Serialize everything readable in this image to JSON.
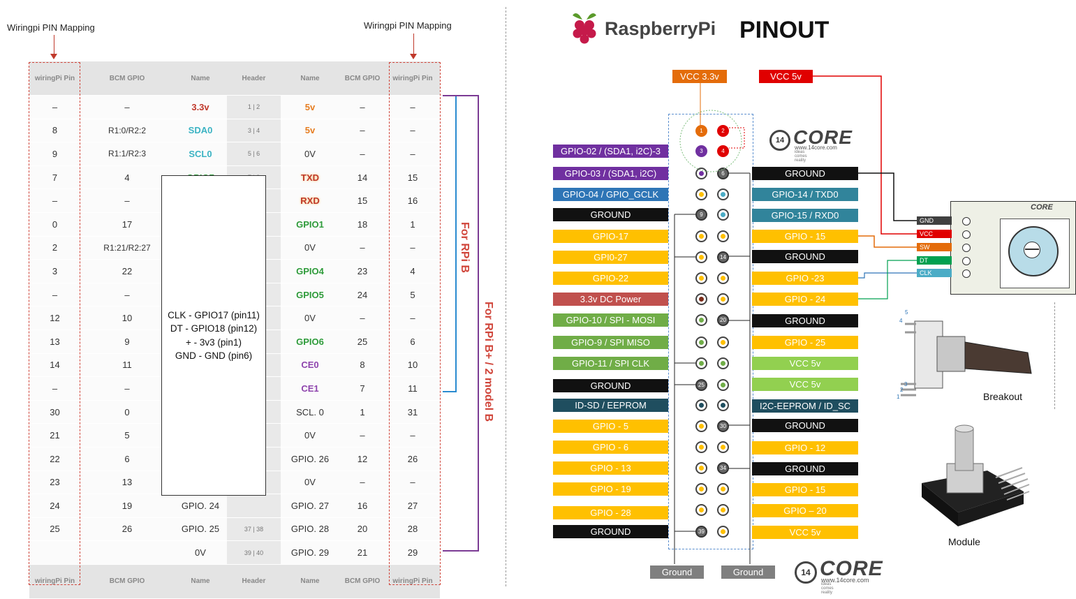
{
  "left": {
    "mapping_label_left": "Wiringpi PIN Mapping",
    "mapping_label_right": "Wiringpi PIN Mapping",
    "header": [
      "wiringPi Pin",
      "BCM GPIO",
      "Name",
      "Header",
      "Name",
      "BCM GPIO",
      "wiringPi Pin"
    ],
    "footer": [
      "wiringPi Pin",
      "BCM GPIO",
      "Name",
      "Header",
      "Name",
      "BCM GPIO",
      "wiringPi Pin"
    ],
    "rows": [
      [
        "–",
        "–",
        "3.3v",
        "1 | 2",
        "5v",
        "–",
        "–"
      ],
      [
        "8",
        "R1:0/R2:2",
        "SDA0",
        "3 | 4",
        "5v",
        "–",
        "–"
      ],
      [
        "9",
        "R1:1/R2:3",
        "SCL0",
        "5 | 6",
        "0V",
        "–",
        "–"
      ],
      [
        "7",
        "4",
        "GPIO7",
        "7 | 8",
        "TXD",
        "14",
        "15"
      ],
      [
        "–",
        "–",
        "",
        "",
        "RXD",
        "15",
        "16"
      ],
      [
        "0",
        "17",
        "",
        "",
        "GPIO1",
        "18",
        "1"
      ],
      [
        "2",
        "R1:21/R2:27",
        "",
        "",
        "0V",
        "–",
        "–"
      ],
      [
        "3",
        "22",
        "",
        "",
        "GPIO4",
        "23",
        "4"
      ],
      [
        "–",
        "–",
        "",
        "",
        "GPIO5",
        "24",
        "5"
      ],
      [
        "12",
        "10",
        "",
        "",
        "0V",
        "–",
        "–"
      ],
      [
        "13",
        "9",
        "",
        "",
        "GPIO6",
        "25",
        "6"
      ],
      [
        "14",
        "11",
        "",
        "",
        "CE0",
        "8",
        "10"
      ],
      [
        "–",
        "–",
        "",
        "",
        "CE1",
        "7",
        "11"
      ],
      [
        "30",
        "0",
        "",
        "",
        "SCL. 0",
        "1",
        "31"
      ],
      [
        "21",
        "5",
        "",
        "",
        "0V",
        "–",
        "–"
      ],
      [
        "22",
        "6",
        "",
        "",
        "GPIO. 26",
        "12",
        "26"
      ],
      [
        "23",
        "13",
        "",
        "",
        "0V",
        "–",
        "–"
      ],
      [
        "24",
        "19",
        "GPIO. 24",
        "",
        "GPIO. 27",
        "16",
        "27"
      ],
      [
        "25",
        "26",
        "GPIO. 25",
        "37 | 38",
        "GPIO. 28",
        "20",
        "28"
      ],
      [
        "",
        "",
        "0V",
        "39 | 40",
        "GPIO. 29",
        "21",
        "29"
      ]
    ],
    "overlay": [
      "CLK - GPIO17 (pin11)",
      "DT - GPIO18 (pin12)",
      "+ - 3v3 (pin1)",
      "GND - GND (pin6)"
    ],
    "side_label_b": "For RPi B",
    "side_label_bplus": "For RPi B+ / 2 model B"
  },
  "right": {
    "brand": "RaspberryPi",
    "title": "PINOUT",
    "vcc33": "VCC 3.3v",
    "vcc5": "VCC 5v",
    "left_labels": [
      {
        "t": "GPIO-02 / (SDA1, i2C)-3",
        "c": "#7030a0"
      },
      {
        "t": "GPIO-03 / (SDA1, i2C)",
        "c": "#7030a0"
      },
      {
        "t": "GPIO-04 / GPIO_GCLK",
        "c": "#2e75b6"
      },
      {
        "t": "GROUND",
        "c": "#111111"
      },
      {
        "t": "GPIO-17",
        "c": "#ffc000"
      },
      {
        "t": "GPI0-27",
        "c": "#ffc000"
      },
      {
        "t": "GPIO-22",
        "c": "#ffc000"
      },
      {
        "t": "3.3v DC Power",
        "c": "#c0504d"
      },
      {
        "t": "GPIO-10 / SPI - MOSI",
        "c": "#70ad47"
      },
      {
        "t": "GPIO-9 / SPI MISO",
        "c": "#70ad47"
      },
      {
        "t": "GPIO-11 / SPI CLK",
        "c": "#70ad47"
      },
      {
        "t": "GROUND",
        "c": "#111111"
      },
      {
        "t": "ID-SD / EEPROM",
        "c": "#1f4e5f"
      },
      {
        "t": "GPIO - 5",
        "c": "#ffc000"
      },
      {
        "t": "GPIO - 6",
        "c": "#ffc000"
      },
      {
        "t": "GPIO - 13",
        "c": "#ffc000"
      },
      {
        "t": "GPIO - 19",
        "c": "#ffc000"
      },
      {
        "t": "GPIO - 28",
        "c": "#ffc000"
      },
      {
        "t": "GROUND",
        "c": "#111111"
      }
    ],
    "right_labels": [
      {
        "t": "GROUND",
        "c": "#111111"
      },
      {
        "t": "GPIO-14 / TXD0",
        "c": "#31849b"
      },
      {
        "t": "GPIO-15 / RXD0",
        "c": "#31849b"
      },
      {
        "t": "GPIO - 15",
        "c": "#ffc000"
      },
      {
        "t": "GROUND",
        "c": "#111111"
      },
      {
        "t": "GPIO -23",
        "c": "#ffc000"
      },
      {
        "t": "GPIO - 24",
        "c": "#ffc000"
      },
      {
        "t": "GROUND",
        "c": "#111111"
      },
      {
        "t": "GPIO - 25",
        "c": "#ffc000"
      },
      {
        "t": "VCC 5v",
        "c": "#92d050"
      },
      {
        "t": "VCC 5v",
        "c": "#92d050"
      },
      {
        "t": "I2C-EEPROM / ID_SC",
        "c": "#1f4e5f"
      },
      {
        "t": "GROUND",
        "c": "#111111"
      },
      {
        "t": "GPIO - 12",
        "c": "#ffc000"
      },
      {
        "t": "GROUND",
        "c": "#111111"
      },
      {
        "t": "GPIO - 15",
        "c": "#ffc000"
      },
      {
        "t": "GPIO – 20",
        "c": "#ffc000"
      },
      {
        "t": "VCC 5v",
        "c": "#ffc000"
      }
    ],
    "pin_numbers": {
      "p1": "1",
      "p2": "2",
      "p3": "3",
      "p4": "4",
      "p6": "6",
      "p9": "9",
      "p14": "14",
      "p20": "20",
      "p25": "25",
      "p30": "30",
      "p34": "34",
      "p39": "39"
    },
    "ground_left": "Ground",
    "ground_right": "Ground",
    "module_pins": [
      {
        "t": "GND",
        "c": "#404040"
      },
      {
        "t": "VCC",
        "c": "#e00000"
      },
      {
        "t": "SW",
        "c": "#e46c0a"
      },
      {
        "t": "DT",
        "c": "#00a050"
      },
      {
        "t": "CLK",
        "c": "#4bacc6"
      }
    ],
    "breakout_label": "Breakout",
    "module_label": "Module",
    "core_logo": "CORE",
    "core_num": "14",
    "core_url": "www.14core.com",
    "core_tag": "ideas comes reality",
    "breakout_pins": [
      "5",
      "4",
      "3",
      "2",
      "1"
    ]
  }
}
